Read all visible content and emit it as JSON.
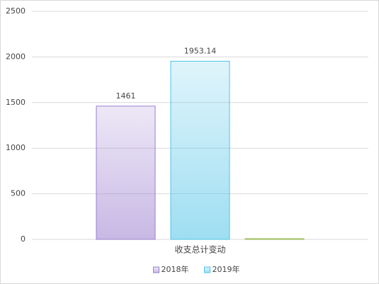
{
  "chart_data": {
    "type": "bar",
    "categories": [
      "收支总计变动"
    ],
    "series": [
      {
        "name": "2018年",
        "color": "#9b7fcf",
        "values": [
          1461
        ]
      },
      {
        "name": "2019年",
        "color": "#4fc3e8",
        "values": [
          1953.14
        ]
      },
      {
        "color": "#9bbb59",
        "values": [
          8
        ]
      }
    ],
    "ylim": [
      0,
      2500
    ],
    "yticks": [
      0,
      500,
      1000,
      1500,
      2000,
      2500
    ],
    "grid": true,
    "legend": "bottom"
  }
}
